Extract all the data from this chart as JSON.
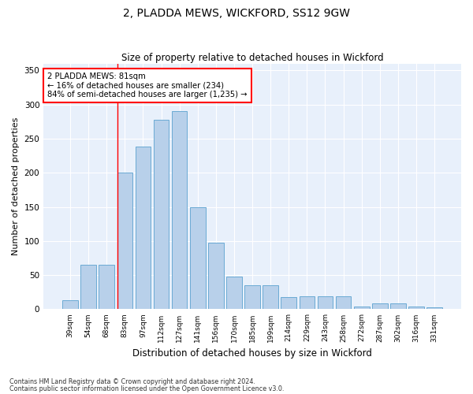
{
  "title": "2, PLADDA MEWS, WICKFORD, SS12 9GW",
  "subtitle": "Size of property relative to detached houses in Wickford",
  "xlabel": "Distribution of detached houses by size in Wickford",
  "ylabel": "Number of detached properties",
  "categories": [
    "39sqm",
    "54sqm",
    "68sqm",
    "83sqm",
    "97sqm",
    "112sqm",
    "127sqm",
    "141sqm",
    "156sqm",
    "170sqm",
    "185sqm",
    "199sqm",
    "214sqm",
    "229sqm",
    "243sqm",
    "258sqm",
    "272sqm",
    "287sqm",
    "302sqm",
    "316sqm",
    "331sqm"
  ],
  "values": [
    13,
    65,
    65,
    200,
    238,
    278,
    290,
    150,
    97,
    48,
    35,
    35,
    18,
    19,
    19,
    19,
    4,
    9,
    9,
    4,
    3
  ],
  "bar_color": "#b8d0ea",
  "bar_edge_color": "#6aaad4",
  "red_line_index": 3,
  "annotation_lines": [
    "2 PLADDA MEWS: 81sqm",
    "← 16% of detached houses are smaller (234)",
    "84% of semi-detached houses are larger (1,235) →"
  ],
  "ylim": [
    0,
    360
  ],
  "bg_color": "#e8f0fb",
  "grid_color": "#ffffff",
  "footnote1": "Contains HM Land Registry data © Crown copyright and database right 2024.",
  "footnote2": "Contains public sector information licensed under the Open Government Licence v3.0."
}
